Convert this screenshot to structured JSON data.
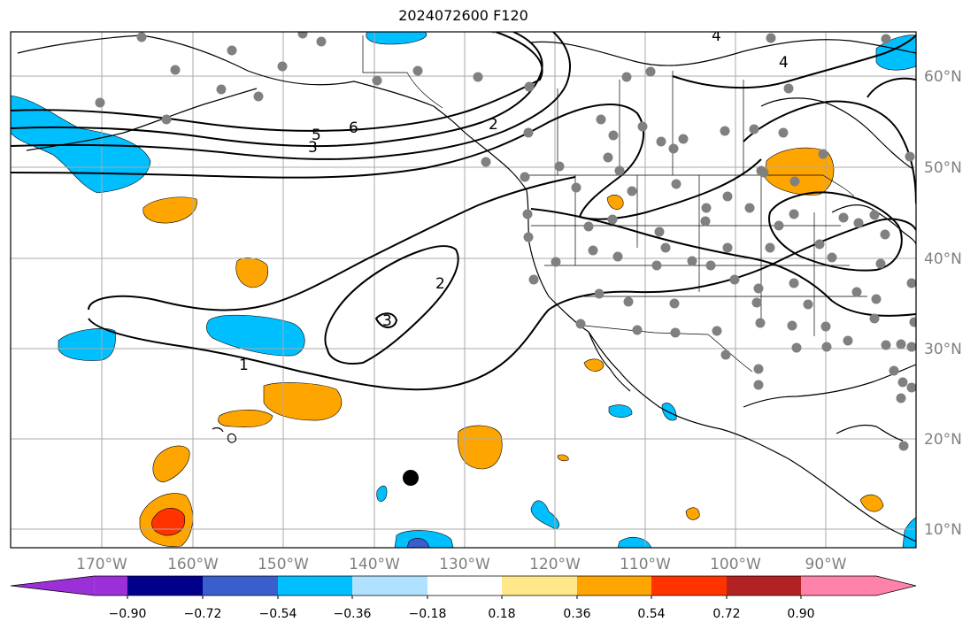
{
  "title": "2024072600 F120",
  "map": {
    "lon_labels": [
      "170°W",
      "160°W",
      "150°W",
      "140°W",
      "130°W",
      "120°W",
      "110°W",
      "100°W",
      "90°W"
    ],
    "lat_labels": [
      "60°N",
      "50°N",
      "40°N",
      "30°N",
      "20°N",
      "10°N"
    ],
    "contour_labels": [
      "6",
      "5",
      "3",
      "2",
      "2",
      "3",
      "1",
      "4",
      "4"
    ],
    "colors": {
      "land_outline": "#000000",
      "grid": "#aaaaaa",
      "station_dot": "#808080",
      "marker": "#000000"
    }
  },
  "colorbar": {
    "tick_labels": [
      "−0.90",
      "−0.72",
      "−0.54",
      "−0.36",
      "−0.18",
      "0.18",
      "0.36",
      "0.54",
      "0.72",
      "0.90"
    ],
    "colors": [
      "#9b30d9",
      "#00008b",
      "#3a5fcd",
      "#00bfff",
      "#b0e2ff",
      "#ffffff",
      "#ffe88a",
      "#ffa500",
      "#ff3300",
      "#b22222",
      "#ff82ab"
    ]
  }
}
